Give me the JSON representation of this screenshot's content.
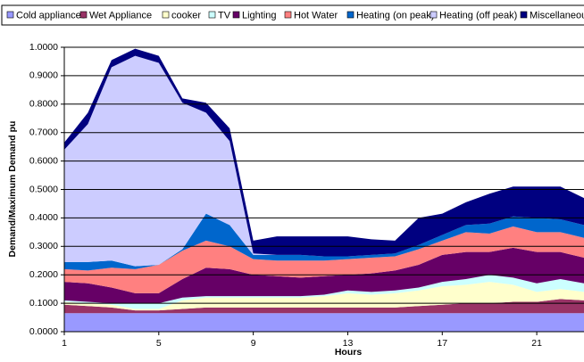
{
  "chart_data": {
    "type": "stacked-area",
    "x_label": "Hours",
    "y_label": "Demand/Maximum Demand pu",
    "x": [
      1,
      2,
      3,
      4,
      5,
      6,
      7,
      8,
      9,
      10,
      11,
      12,
      13,
      14,
      15,
      16,
      17,
      18,
      19,
      20,
      21,
      22,
      23
    ],
    "xlim": [
      1,
      23
    ],
    "xticks": [
      1,
      5,
      9,
      13,
      17,
      21
    ],
    "ylim": [
      0,
      1
    ],
    "yticks": [
      {
        "value": 0,
        "label": "0.0000"
      },
      {
        "value": 0.1,
        "label": "0.1000"
      },
      {
        "value": 0.2,
        "label": "0.2000"
      },
      {
        "value": 0.3,
        "label": "0.3000"
      },
      {
        "value": 0.4,
        "label": "0.4000"
      },
      {
        "value": 0.5,
        "label": "0.5000"
      },
      {
        "value": 0.6,
        "label": "0.6000"
      },
      {
        "value": 0.7,
        "label": "0.7000"
      },
      {
        "value": 0.8,
        "label": "0.8000"
      },
      {
        "value": 0.9,
        "label": "0.9000"
      },
      {
        "value": 1,
        "label": "1.0000"
      }
    ],
    "grid": true,
    "legend": "top",
    "series": [
      {
        "name": "Cold appliances",
        "color": "#9999ff",
        "values": [
          0.065,
          0.065,
          0.065,
          0.065,
          0.065,
          0.065,
          0.065,
          0.065,
          0.065,
          0.065,
          0.065,
          0.065,
          0.065,
          0.065,
          0.065,
          0.065,
          0.065,
          0.065,
          0.065,
          0.065,
          0.065,
          0.065,
          0.065
        ]
      },
      {
        "name": "Wet Appliance",
        "color": "#993366",
        "values": [
          0.03,
          0.025,
          0.02,
          0.01,
          0.01,
          0.015,
          0.02,
          0.02,
          0.02,
          0.02,
          0.02,
          0.02,
          0.02,
          0.02,
          0.02,
          0.025,
          0.03,
          0.035,
          0.035,
          0.04,
          0.04,
          0.05,
          0.045
        ]
      },
      {
        "name": "cooker",
        "color": "#ffffcc",
        "values": [
          0.01,
          0.01,
          0.01,
          0.005,
          0.005,
          0.03,
          0.035,
          0.035,
          0.035,
          0.035,
          0.035,
          0.04,
          0.05,
          0.045,
          0.05,
          0.055,
          0.065,
          0.065,
          0.075,
          0.06,
          0.035,
          0.035,
          0.03
        ]
      },
      {
        "name": "TV",
        "color": "#ccffff",
        "values": [
          0.005,
          0.005,
          0.005,
          0.02,
          0.02,
          0.01,
          0.005,
          0.005,
          0.005,
          0.005,
          0.005,
          0.005,
          0.01,
          0.01,
          0.01,
          0.01,
          0.015,
          0.02,
          0.025,
          0.025,
          0.03,
          0.035,
          0.03
        ]
      },
      {
        "name": "Lighting",
        "color": "#660066",
        "values": [
          0.065,
          0.065,
          0.055,
          0.035,
          0.035,
          0.065,
          0.1,
          0.095,
          0.075,
          0.07,
          0.065,
          0.065,
          0.055,
          0.065,
          0.07,
          0.08,
          0.095,
          0.095,
          0.08,
          0.105,
          0.11,
          0.095,
          0.09
        ]
      },
      {
        "name": "Hot Water",
        "color": "#ff8080",
        "values": [
          0.045,
          0.045,
          0.07,
          0.085,
          0.1,
          0.1,
          0.095,
          0.08,
          0.055,
          0.055,
          0.06,
          0.055,
          0.055,
          0.055,
          0.05,
          0.055,
          0.05,
          0.07,
          0.065,
          0.075,
          0.07,
          0.07,
          0.07
        ]
      },
      {
        "name": "Heating (on peak)",
        "color": "#0066cc",
        "values": [
          0.025,
          0.03,
          0.025,
          0.01,
          0,
          0.005,
          0.095,
          0.075,
          0.015,
          0.02,
          0.02,
          0.015,
          0.01,
          0.01,
          0.01,
          0.015,
          0.02,
          0.025,
          0.035,
          0.035,
          0.05,
          0.045,
          0.045
        ]
      },
      {
        "name": "Heating (off peak)",
        "color": "#ccccff",
        "values": [
          0.395,
          0.485,
          0.68,
          0.74,
          0.71,
          0.515,
          0.355,
          0.295,
          0.005,
          0,
          0,
          0,
          0,
          0,
          0,
          0,
          0,
          0,
          0,
          0,
          0,
          0,
          0
        ]
      },
      {
        "name": "Miscellaneous",
        "color": "#000080",
        "values": [
          0.025,
          0.04,
          0.025,
          0.025,
          0.025,
          0.015,
          0.035,
          0.045,
          0.045,
          0.065,
          0.065,
          0.07,
          0.07,
          0.055,
          0.045,
          0.095,
          0.075,
          0.08,
          0.105,
          0.105,
          0.11,
          0.115,
          0.095
        ]
      }
    ]
  }
}
